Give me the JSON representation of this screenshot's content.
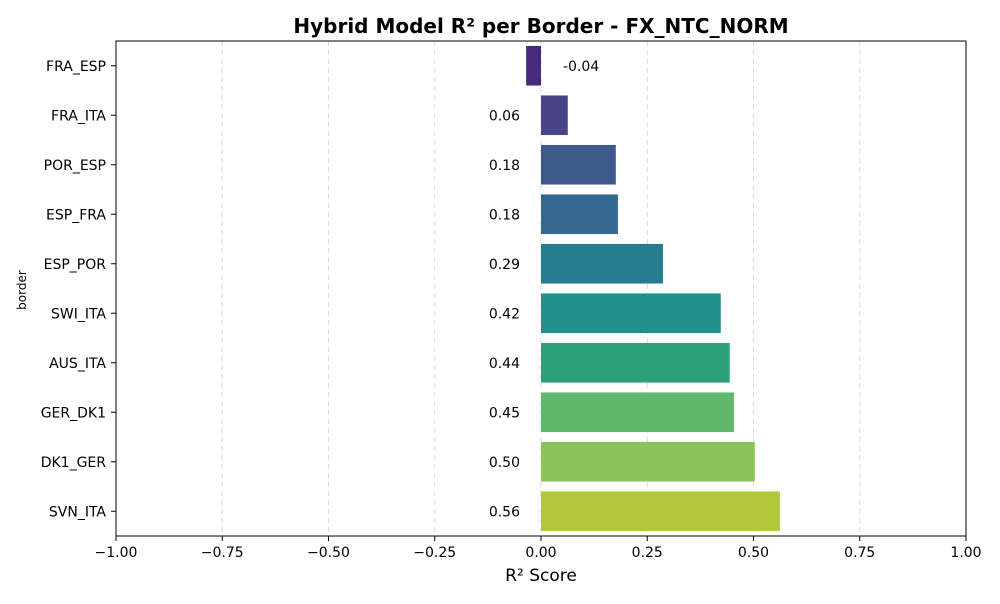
{
  "chart_data": {
    "type": "bar",
    "orientation": "horizontal",
    "title": "Hybrid Model R² per Border - FX_NTC_NORM",
    "xlabel": "R² Score",
    "ylabel": "border",
    "xlim": [
      -1.0,
      1.0
    ],
    "xticks": [
      -1.0,
      -0.75,
      -0.5,
      -0.25,
      0.0,
      0.25,
      0.5,
      0.75,
      1.0
    ],
    "xtick_labels": [
      "−1.00",
      "−0.75",
      "−0.50",
      "−0.25",
      "0.00",
      "0.25",
      "0.50",
      "0.75",
      "1.00"
    ],
    "grid": "x-dashed",
    "categories": [
      "FRA_ESP",
      "FRA_ITA",
      "POR_ESP",
      "ESP_FRA",
      "ESP_POR",
      "SWI_ITA",
      "AUS_ITA",
      "GER_DK1",
      "DK1_GER",
      "SVN_ITA"
    ],
    "values": [
      -0.035,
      0.063,
      0.176,
      0.181,
      0.287,
      0.423,
      0.444,
      0.454,
      0.503,
      0.562
    ],
    "value_labels": [
      "-0.04",
      "0.06",
      "0.18",
      "0.18",
      "0.29",
      "0.42",
      "0.44",
      "0.45",
      "0.50",
      "0.56"
    ],
    "colors": [
      "#472a7a",
      "#47448a",
      "#3c5a8c",
      "#33698c",
      "#277b8e",
      "#1f908c",
      "#2ba179",
      "#5fb86c",
      "#8bc45b",
      "#b2c73a"
    ]
  }
}
